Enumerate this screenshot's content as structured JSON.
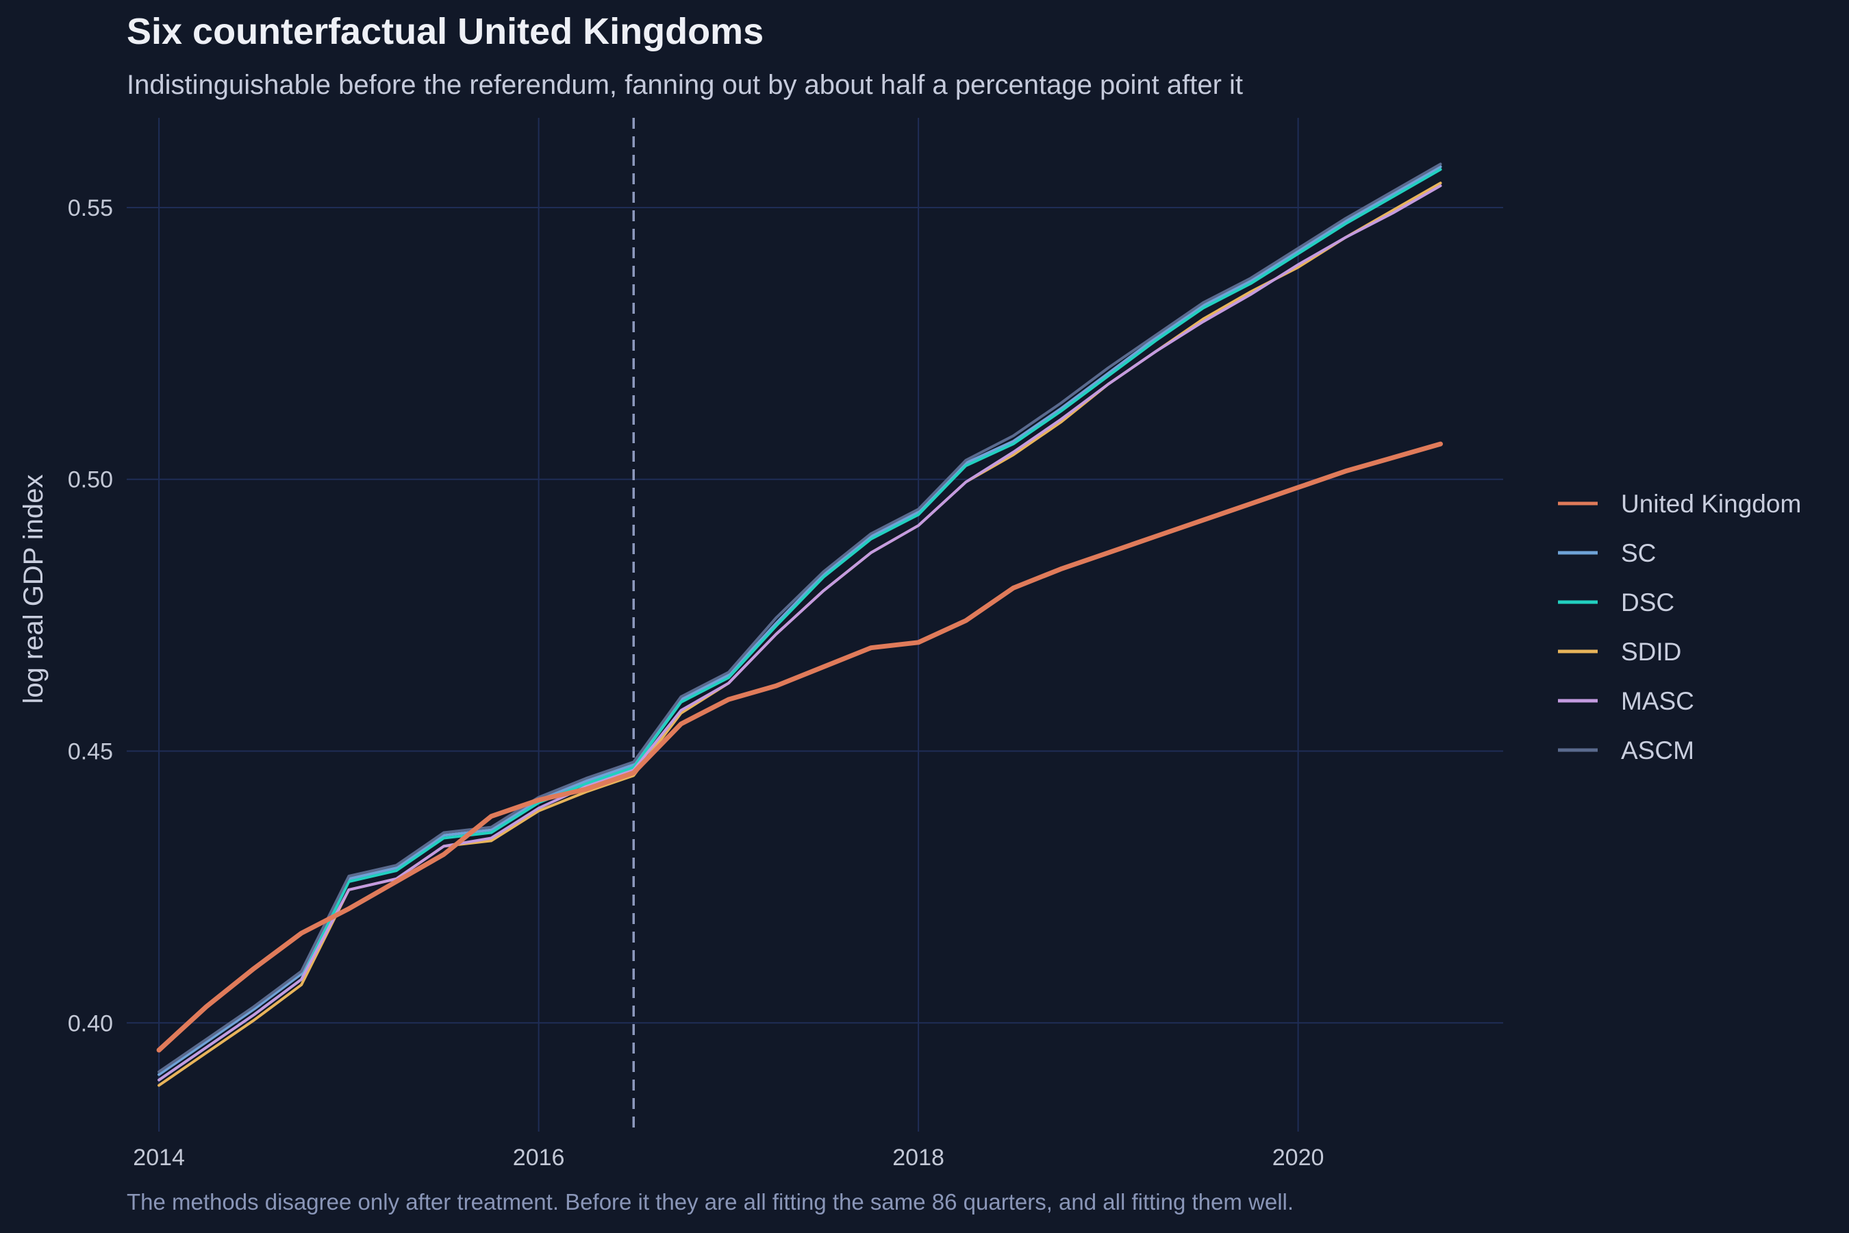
{
  "chart_data": {
    "type": "line",
    "title": "Six counterfactual United Kingdoms",
    "subtitle": "Indistinguishable before the referendum, fanning out by about half a percentage point after it",
    "caption": "The methods disagree only after treatment. Before it they are all fitting the same 86 quarters, and all fitting them well.",
    "xlabel": "",
    "ylabel": "log real GDP index",
    "xlim": [
      2013.83,
      2021.08
    ],
    "ylim": [
      0.38,
      0.5665
    ],
    "x_ticks": [
      2014,
      2016,
      2018,
      2020
    ],
    "x_tick_labels": [
      "2014",
      "2016",
      "2018",
      "2020"
    ],
    "y_ticks": [
      0.4,
      0.45,
      0.5,
      0.55
    ],
    "y_tick_labels": [
      "0.40",
      "0.45",
      "0.50",
      "0.55"
    ],
    "grid": true,
    "legend_position": "right",
    "treatment_line_x": 2016.5,
    "x": [
      2014.0,
      2014.25,
      2014.5,
      2014.75,
      2015.0,
      2015.25,
      2015.5,
      2015.75,
      2016.0,
      2016.25,
      2016.5,
      2016.75,
      2017.0,
      2017.25,
      2017.5,
      2017.75,
      2018.0,
      2018.25,
      2018.5,
      2018.75,
      2019.0,
      2019.25,
      2019.5,
      2019.75,
      2020.0,
      2020.25,
      2020.5,
      2020.75
    ],
    "series": [
      {
        "name": "United Kingdom",
        "color": "#e07b5a",
        "width": 7,
        "values": [
          0.395,
          0.403,
          0.41,
          0.4165,
          0.421,
          0.426,
          0.431,
          0.438,
          0.441,
          0.443,
          0.446,
          0.455,
          0.4595,
          0.462,
          0.4655,
          0.469,
          0.47,
          0.474,
          0.48,
          0.4835,
          0.4865,
          0.4895,
          0.4925,
          0.4955,
          0.4985,
          0.5015,
          0.504,
          0.5065
        ]
      },
      {
        "name": "SC",
        "color": "#6fa3d8",
        "width": 4,
        "values": [
          0.3905,
          0.3965,
          0.4025,
          0.409,
          0.4265,
          0.4285,
          0.4345,
          0.4355,
          0.441,
          0.4445,
          0.4475,
          0.4595,
          0.464,
          0.4735,
          0.4825,
          0.4895,
          0.494,
          0.503,
          0.507,
          0.513,
          0.5195,
          0.526,
          0.532,
          0.5365,
          0.542,
          0.5475,
          0.5525,
          0.5575
        ]
      },
      {
        "name": "DSC",
        "color": "#22d0c0",
        "width": 4,
        "values": [
          0.3895,
          0.3955,
          0.4015,
          0.408,
          0.426,
          0.428,
          0.434,
          0.435,
          0.4405,
          0.444,
          0.447,
          0.459,
          0.4635,
          0.473,
          0.482,
          0.489,
          0.4935,
          0.5025,
          0.5065,
          0.5125,
          0.519,
          0.5255,
          0.5315,
          0.536,
          0.5415,
          0.547,
          0.552,
          0.557
        ]
      },
      {
        "name": "SDID",
        "color": "#e8b45a",
        "width": 4,
        "values": [
          0.3885,
          0.3945,
          0.4005,
          0.407,
          0.4245,
          0.4265,
          0.4325,
          0.4335,
          0.439,
          0.4425,
          0.4455,
          0.457,
          0.4625,
          0.4715,
          0.4795,
          0.4865,
          0.4915,
          0.4995,
          0.5045,
          0.5105,
          0.5175,
          0.5235,
          0.5295,
          0.5345,
          0.539,
          0.5445,
          0.5495,
          0.5545
        ]
      },
      {
        "name": "MASC",
        "color": "#c49be0",
        "width": 4,
        "values": [
          0.3895,
          0.3955,
          0.4015,
          0.408,
          0.4245,
          0.4265,
          0.4325,
          0.434,
          0.4395,
          0.4435,
          0.4465,
          0.4575,
          0.4625,
          0.4715,
          0.4795,
          0.4865,
          0.4915,
          0.4995,
          0.505,
          0.511,
          0.5175,
          0.5235,
          0.529,
          0.534,
          0.5395,
          0.5445,
          0.549,
          0.554
        ]
      },
      {
        "name": "ASCM",
        "color": "#5a6a8e",
        "width": 4,
        "values": [
          0.391,
          0.397,
          0.403,
          0.4095,
          0.427,
          0.429,
          0.435,
          0.436,
          0.4415,
          0.445,
          0.448,
          0.46,
          0.4645,
          0.4745,
          0.483,
          0.49,
          0.4945,
          0.5035,
          0.508,
          0.514,
          0.5205,
          0.5265,
          0.5325,
          0.537,
          0.5425,
          0.548,
          0.553,
          0.558
        ]
      }
    ]
  }
}
